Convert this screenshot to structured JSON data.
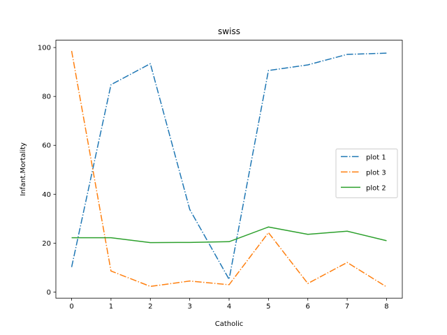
{
  "chart_data": {
    "type": "line",
    "title": "swiss",
    "xlabel": "Catholic",
    "ylabel": "Infant.Mortality",
    "x": [
      0,
      1,
      2,
      3,
      4,
      5,
      6,
      7,
      8
    ],
    "xlim": [
      -0.4,
      8.4
    ],
    "ylim": [
      -2.5,
      103
    ],
    "xticks": [
      "0",
      "1",
      "2",
      "3",
      "4",
      "5",
      "6",
      "7",
      "8"
    ],
    "yticks": [
      "0",
      "20",
      "40",
      "60",
      "80",
      "100"
    ],
    "grid": false,
    "legend_position": "center-right",
    "series": [
      {
        "name": "plot 1",
        "color": "#1f77b4",
        "linestyle": "dashdot",
        "values": [
          10.2,
          84.8,
          93.4,
          33.8,
          5.2,
          90.6,
          92.9,
          97.2,
          97.7
        ]
      },
      {
        "name": "plot 3",
        "color": "#ff7f0e",
        "linestyle": "dashdot",
        "values": [
          98.6,
          8.6,
          2.3,
          4.5,
          3.0,
          24.3,
          3.5,
          12.1,
          2.1
        ]
      },
      {
        "name": "plot 2",
        "color": "#2ca02c",
        "linestyle": "solid",
        "values": [
          22.2,
          22.2,
          20.2,
          20.3,
          20.6,
          26.6,
          23.6,
          24.9,
          21.0
        ]
      }
    ]
  }
}
